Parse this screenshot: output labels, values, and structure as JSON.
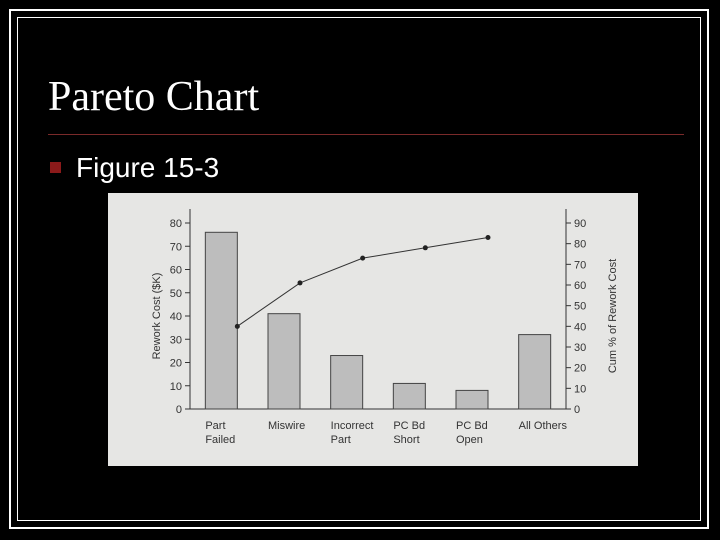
{
  "slide": {
    "title": "Pareto Chart",
    "bullet": "Figure 15-3"
  },
  "colors": {
    "background": "#000000",
    "text": "#ffffff",
    "accent": "#8b1a1a",
    "bar_fill": "#bdbdbd",
    "figure_bg": "#e6e6e4"
  },
  "chart_data": {
    "type": "bar",
    "categories": [
      [
        "Part",
        "Failed"
      ],
      [
        "Miswire"
      ],
      [
        "Incorrect",
        "Part"
      ],
      [
        "PC Bd",
        "Short"
      ],
      [
        "PC Bd",
        "Open"
      ],
      [
        "All Others"
      ]
    ],
    "values": [
      76,
      41,
      23,
      11,
      8,
      32
    ],
    "line": {
      "values": [
        40,
        61,
        73,
        78,
        83
      ]
    },
    "ylabel": "Rework Cost ($K)",
    "ylabel2": "Cum % of Rework Cost",
    "ylim": [
      0,
      80
    ],
    "y2lim": [
      0,
      90
    ],
    "yticks": [
      0,
      10,
      20,
      30,
      40,
      50,
      60,
      70,
      80
    ],
    "y2ticks": [
      0,
      10,
      20,
      30,
      40,
      50,
      60,
      70,
      80,
      90
    ]
  }
}
